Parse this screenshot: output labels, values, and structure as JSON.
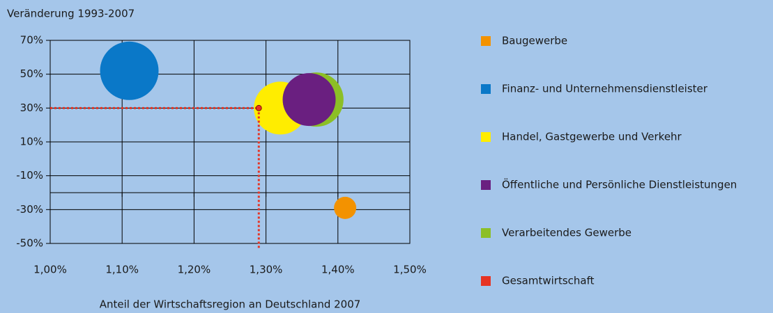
{
  "chart_data": {
    "type": "scatter",
    "title": "Veränderung 1993-2007",
    "x_label": "Anteil der Wirtschaftsregion an Deutschland 2007",
    "xlim": [
      1.0,
      1.5
    ],
    "xticks": [
      {
        "value": 1.0,
        "label": "1,00%"
      },
      {
        "value": 1.1,
        "label": "1,10%"
      },
      {
        "value": 1.2,
        "label": "1,20%"
      },
      {
        "value": 1.3,
        "label": "1,30%"
      },
      {
        "value": 1.4,
        "label": "1,40%"
      },
      {
        "value": 1.5,
        "label": "1,50%"
      }
    ],
    "ylim": [
      -50,
      70
    ],
    "yticks": [
      {
        "value": 70,
        "label": "70%"
      },
      {
        "value": 50,
        "label": "50%"
      },
      {
        "value": 30,
        "label": "30%"
      },
      {
        "value": 10,
        "label": "10%"
      },
      {
        "value": -10,
        "label": "-10%"
      },
      {
        "value": -30,
        "label": "-30%"
      },
      {
        "value": -50,
        "label": "-50%"
      }
    ],
    "x_axis_crosses": -20,
    "grid": true,
    "legend": "right",
    "series": [
      {
        "name": "Baugewerbe",
        "color": "#f39200",
        "x": [
          1.41
        ],
        "values": [
          -29
        ],
        "sizes": [
          16
        ]
      },
      {
        "name": "Finanz- und Unternehmensdienstleister",
        "color": "#0a78c8",
        "x": [
          1.11
        ],
        "values": [
          52
        ],
        "sizes": [
          42
        ]
      },
      {
        "name": "Handel, Gastgewerbe und Verkehr",
        "color": "#ffed00",
        "x": [
          1.32
        ],
        "values": [
          30
        ],
        "sizes": [
          38
        ]
      },
      {
        "name": "Öffentliche und Persönliche Dienstleistungen",
        "color": "#6a1f80",
        "x": [
          1.36
        ],
        "values": [
          35
        ],
        "sizes": [
          38
        ]
      },
      {
        "name": "Verarbeitendes Gewerbe",
        "color": "#8cbf26",
        "x": [
          1.37
        ],
        "values": [
          35
        ],
        "sizes": [
          39
        ]
      },
      {
        "name": "Gesamtwirtschaft",
        "color": "#e63323",
        "x": [
          1.29
        ],
        "values": [
          30
        ],
        "sizes": [
          4
        ]
      }
    ]
  }
}
